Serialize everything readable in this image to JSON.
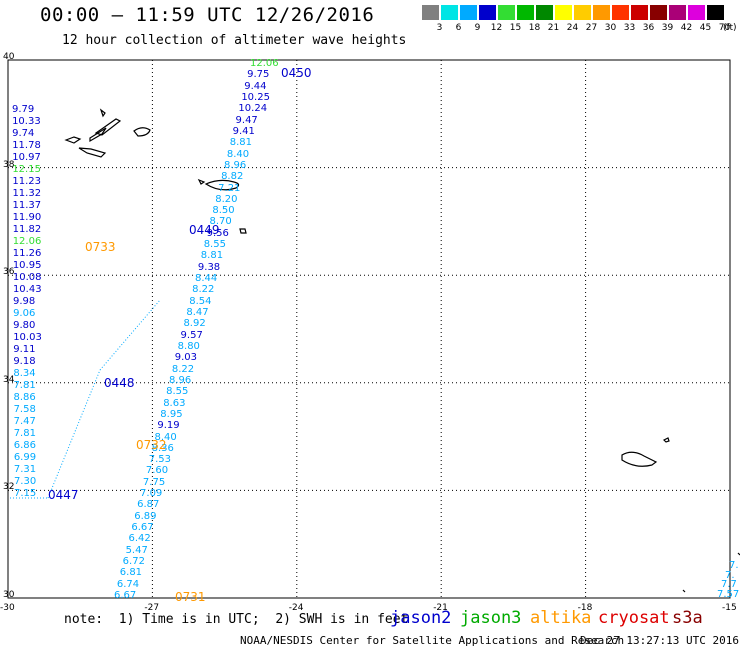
{
  "header": {
    "title": "00:00 – 11:59 UTC 12/26/2016",
    "subtitle": "12 hour collection of altimeter wave heights"
  },
  "colorbar": {
    "labels": [
      "3",
      "6",
      "9",
      "12",
      "15",
      "18",
      "21",
      "24",
      "27",
      "30",
      "33",
      "36",
      "39",
      "42",
      "45",
      "70"
    ],
    "unit": "(ft)",
    "colors": [
      "#808080",
      "#00e5e5",
      "#00aaff",
      "#0000cc",
      "#33dd33",
      "#00b800",
      "#008800",
      "#ffff00",
      "#ffcc00",
      "#ff9900",
      "#ff3300",
      "#cc0000",
      "#880000",
      "#aa0077",
      "#dd00dd",
      "#000000"
    ]
  },
  "axes": {
    "lat_labels": [
      "40",
      "38",
      "36",
      "34",
      "32",
      "30"
    ],
    "lon_labels": [
      "-30",
      "-27",
      "-24",
      "-21",
      "-18",
      "-15"
    ]
  },
  "track_west": [
    {
      "v": "9.79",
      "c": "#0000cc"
    },
    {
      "v": "10.33",
      "c": "#0000cc"
    },
    {
      "v": "9.74",
      "c": "#0000cc"
    },
    {
      "v": "11.78",
      "c": "#0000cc"
    },
    {
      "v": "10.97",
      "c": "#0000cc"
    },
    {
      "v": "12.15",
      "c": "#33dd33"
    },
    {
      "v": "11.23",
      "c": "#0000cc"
    },
    {
      "v": "11.32",
      "c": "#0000cc"
    },
    {
      "v": "11.37",
      "c": "#0000cc"
    },
    {
      "v": "11.90",
      "c": "#0000cc"
    },
    {
      "v": "11.82",
      "c": "#0000cc"
    },
    {
      "v": "12.06",
      "c": "#33dd33"
    },
    {
      "v": "11.26",
      "c": "#0000cc"
    },
    {
      "v": "10.95",
      "c": "#0000cc"
    },
    {
      "v": "10.08",
      "c": "#0000cc"
    },
    {
      "v": "10.43",
      "c": "#0000cc"
    },
    {
      "v": "9.98",
      "c": "#0000cc"
    },
    {
      "v": "9.06",
      "c": "#00aaff"
    },
    {
      "v": "9.80",
      "c": "#0000cc"
    },
    {
      "v": "10.03",
      "c": "#0000cc"
    },
    {
      "v": "9.11",
      "c": "#0000cc"
    },
    {
      "v": "9.18",
      "c": "#0000cc"
    },
    {
      "v": "8.34",
      "c": "#00aaff"
    },
    {
      "v": "7.81",
      "c": "#00aaff"
    },
    {
      "v": "8.86",
      "c": "#00aaff"
    },
    {
      "v": "7.58",
      "c": "#00aaff"
    },
    {
      "v": "7.47",
      "c": "#00aaff"
    },
    {
      "v": "7.81",
      "c": "#00aaff"
    },
    {
      "v": "6.86",
      "c": "#00aaff"
    },
    {
      "v": "6.99",
      "c": "#00aaff"
    },
    {
      "v": "7.31",
      "c": "#00aaff"
    },
    {
      "v": "7.30",
      "c": "#00aaff"
    },
    {
      "v": "7.15",
      "c": "#00aaff"
    }
  ],
  "track_middle": [
    {
      "v": "12.06",
      "c": "#33dd33"
    },
    {
      "v": "9.75",
      "c": "#0000cc"
    },
    {
      "v": "9.44",
      "c": "#0000cc"
    },
    {
      "v": "10.25",
      "c": "#0000cc"
    },
    {
      "v": "10.24",
      "c": "#0000cc"
    },
    {
      "v": "9.47",
      "c": "#0000cc"
    },
    {
      "v": "9.41",
      "c": "#0000cc"
    },
    {
      "v": "8.81",
      "c": "#00aaff"
    },
    {
      "v": "8.40",
      "c": "#00aaff"
    },
    {
      "v": "8.96",
      "c": "#00aaff"
    },
    {
      "v": "8.82",
      "c": "#00aaff"
    },
    {
      "v": "7.21",
      "c": "#00aaff"
    },
    {
      "v": "8.20",
      "c": "#00aaff"
    },
    {
      "v": "8.50",
      "c": "#00aaff"
    },
    {
      "v": "8.70",
      "c": "#00aaff"
    },
    {
      "v": "9.56",
      "c": "#0000cc"
    },
    {
      "v": "8.55",
      "c": "#00aaff"
    },
    {
      "v": "8.81",
      "c": "#00aaff"
    },
    {
      "v": "9.38",
      "c": "#0000cc"
    },
    {
      "v": "8.44",
      "c": "#00aaff"
    },
    {
      "v": "8.22",
      "c": "#00aaff"
    },
    {
      "v": "8.54",
      "c": "#00aaff"
    },
    {
      "v": "8.47",
      "c": "#00aaff"
    },
    {
      "v": "8.92",
      "c": "#00aaff"
    },
    {
      "v": "9.57",
      "c": "#0000cc"
    },
    {
      "v": "8.80",
      "c": "#00aaff"
    },
    {
      "v": "9.03",
      "c": "#0000cc"
    },
    {
      "v": "8.22",
      "c": "#00aaff"
    },
    {
      "v": "8.96",
      "c": "#00aaff"
    },
    {
      "v": "8.55",
      "c": "#00aaff"
    },
    {
      "v": "8.63",
      "c": "#00aaff"
    },
    {
      "v": "8.95",
      "c": "#00aaff"
    },
    {
      "v": "9.19",
      "c": "#0000cc"
    },
    {
      "v": "8.40",
      "c": "#00aaff"
    },
    {
      "v": "8.36",
      "c": "#00aaff"
    },
    {
      "v": "7.53",
      "c": "#00aaff"
    },
    {
      "v": "7.60",
      "c": "#00aaff"
    },
    {
      "v": "7.75",
      "c": "#00aaff"
    },
    {
      "v": "7.09",
      "c": "#00aaff"
    },
    {
      "v": "6.87",
      "c": "#00aaff"
    },
    {
      "v": "6.89",
      "c": "#00aaff"
    },
    {
      "v": "6.67",
      "c": "#00aaff"
    },
    {
      "v": "6.42",
      "c": "#00aaff"
    },
    {
      "v": "5.47",
      "c": "#00aaff"
    },
    {
      "v": "6.72",
      "c": "#00aaff"
    },
    {
      "v": "6.81",
      "c": "#00aaff"
    },
    {
      "v": "6.74",
      "c": "#00aaff"
    },
    {
      "v": "6.67",
      "c": "#00aaff"
    }
  ],
  "track_east": [
    {
      "v": "7.",
      "c": "#00aaff"
    },
    {
      "v": "7.",
      "c": "#00aaff"
    },
    {
      "v": "7.7",
      "c": "#00aaff"
    },
    {
      "v": "7.57",
      "c": "#00aaff"
    }
  ],
  "passes": [
    {
      "time": "0450",
      "color": "#0000cc"
    },
    {
      "time": "0449",
      "color": "#0000cc"
    },
    {
      "time": "0733",
      "color": "#ff9900"
    },
    {
      "time": "0448",
      "color": "#0000cc"
    },
    {
      "time": "0732",
      "color": "#ff9900"
    },
    {
      "time": "0447",
      "color": "#0000cc"
    },
    {
      "time": "0731",
      "color": "#ff9900"
    }
  ],
  "legend": {
    "note": "note:  1) Time is in UTC;  2) SWH is in feet",
    "satellites": [
      {
        "name": "jason2",
        "color": "#0000cc"
      },
      {
        "name": "jason3",
        "color": "#00aa00"
      },
      {
        "name": "altika",
        "color": "#ff9900"
      },
      {
        "name": "cryosat",
        "color": "#dd0000"
      },
      {
        "name": "s3a",
        "color": "#880000"
      }
    ]
  },
  "footer": {
    "agency": "NOAA/NESDIS Center for Satellite Applications and Research",
    "timestamp": "Dec 27 13:27:13 UTC 2016"
  }
}
